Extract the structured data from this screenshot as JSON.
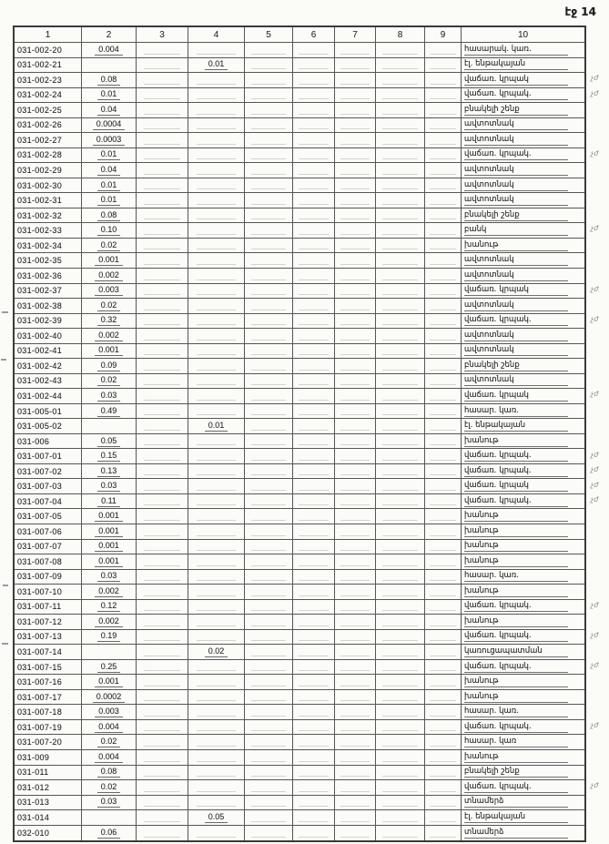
{
  "page": {
    "number_label": "էջ 14"
  },
  "colors": {
    "paper": "#fbfbf8",
    "ink": "#2d2d2d",
    "border": "#565656",
    "note": "#8a8a8a"
  },
  "table": {
    "headers": [
      "1",
      "2",
      "3",
      "4",
      "5",
      "6",
      "7",
      "8",
      "9",
      "10"
    ],
    "rows": [
      {
        "code": "031-002-20",
        "area": "0.004",
        "col4": "",
        "designation": "հասարակ. կառ.",
        "note": ""
      },
      {
        "code": "031-002-21",
        "area": "",
        "col4": "0.01",
        "designation": "էլ. ենթակայան",
        "note": ""
      },
      {
        "code": "031-002-23",
        "area": "0.08",
        "col4": "",
        "designation": "վաճառ. կրպակ",
        "note": "չժ"
      },
      {
        "code": "031-002-24",
        "area": "0.01",
        "col4": "",
        "designation": "վաճառ. կրպակ.",
        "note": "չժ"
      },
      {
        "code": "031-002-25",
        "area": "0.04",
        "col4": "",
        "designation": "բնակելի շենք",
        "note": ""
      },
      {
        "code": "031-002-26",
        "area": "0.0004",
        "col4": "",
        "designation": "ավտոտնակ",
        "note": ""
      },
      {
        "code": "031-002-27",
        "area": "0.0003",
        "col4": "",
        "designation": "ավտոտնակ",
        "note": ""
      },
      {
        "code": "031-002-28",
        "area": "0.01",
        "col4": "",
        "designation": "վաճառ. կրպակ.",
        "note": "չժ"
      },
      {
        "code": "031-002-29",
        "area": "0.04",
        "col4": "",
        "designation": "ավտոտնակ",
        "note": ""
      },
      {
        "code": "031-002-30",
        "area": "0.01",
        "col4": "",
        "designation": "ավտոտնակ",
        "note": ""
      },
      {
        "code": "031-002-31",
        "area": "0.01",
        "col4": "",
        "designation": "ավտոտնակ",
        "note": ""
      },
      {
        "code": "031-002-32",
        "area": "0.08",
        "col4": "",
        "designation": "բնակելի շենք",
        "note": ""
      },
      {
        "code": "031-002-33",
        "area": "0.10",
        "col4": "",
        "designation": "բանկ",
        "note": "չժ"
      },
      {
        "code": "031-002-34",
        "area": "0.02",
        "col4": "",
        "designation": "խանութ",
        "note": ""
      },
      {
        "code": "031-002-35",
        "area": "0.001",
        "col4": "",
        "designation": "ավտոտնակ",
        "note": ""
      },
      {
        "code": "031-002-36",
        "area": "0.002",
        "col4": "",
        "designation": "ավտոտնակ",
        "note": ""
      },
      {
        "code": "031-002-37",
        "area": "0.003",
        "col4": "",
        "designation": "վաճառ. կրպակ",
        "note": "չժ"
      },
      {
        "code": "031-002-38",
        "area": "0.02",
        "col4": "",
        "designation": "ավտոտնակ",
        "note": ""
      },
      {
        "code": "031-002-39",
        "area": "0.32",
        "col4": "",
        "designation": "վաճառ. կրպակ.",
        "note": "չժ"
      },
      {
        "code": "031-002-40",
        "area": "0.002",
        "col4": "",
        "designation": "ավտոտնակ",
        "note": ""
      },
      {
        "code": "031-002-41",
        "area": "0.001",
        "col4": "",
        "designation": "ավտոտնակ",
        "note": ""
      },
      {
        "code": "031-002-42",
        "area": "0.09",
        "col4": "",
        "designation": "բնակելի շենք",
        "note": ""
      },
      {
        "code": "031-002-43",
        "area": "0.02",
        "col4": "",
        "designation": "ավտոտնակ",
        "note": ""
      },
      {
        "code": "031-002-44",
        "area": "0.03",
        "col4": "",
        "designation": "վաճառ. կրպակ",
        "note": "չժ"
      },
      {
        "code": "031-005-01",
        "area": "0.49",
        "col4": "",
        "designation": "հասար. կառ.",
        "note": ""
      },
      {
        "code": "031-005-02",
        "area": "",
        "col4": "0.01",
        "designation": "էլ. ենթակայան",
        "note": ""
      },
      {
        "code": "031-006",
        "area": "0.05",
        "col4": "",
        "designation": "խանութ",
        "note": ""
      },
      {
        "code": "031-007-01",
        "area": "0.15",
        "col4": "",
        "designation": "վաճառ. կրպակ.",
        "note": "չժ"
      },
      {
        "code": "031-007-02",
        "area": "0.13",
        "col4": "",
        "designation": "վաճառ. կրպակ.",
        "note": "չժ"
      },
      {
        "code": "031-007-03",
        "area": "0.03",
        "col4": "",
        "designation": "վաճառ. կրպակ",
        "note": "չժ"
      },
      {
        "code": "031-007-04",
        "area": "0.11",
        "col4": "",
        "designation": "վաճառ. կրպակ.",
        "note": "չժ"
      },
      {
        "code": "031-007-05",
        "area": "0.001",
        "col4": "",
        "designation": "խանութ",
        "note": ""
      },
      {
        "code": "031-007-06",
        "area": "0.001",
        "col4": "",
        "designation": "խանութ",
        "note": ""
      },
      {
        "code": "031-007-07",
        "area": "0.001",
        "col4": "",
        "designation": "խանութ",
        "note": ""
      },
      {
        "code": "031-007-08",
        "area": "0.001",
        "col4": "",
        "designation": "խանութ",
        "note": ""
      },
      {
        "code": "031-007-09",
        "area": "0.03",
        "col4": "",
        "designation": "հասար. կառ.",
        "note": ""
      },
      {
        "code": "031-007-10",
        "area": "0.002",
        "col4": "",
        "designation": "խանութ",
        "note": ""
      },
      {
        "code": "031-007-11",
        "area": "0.12",
        "col4": "",
        "designation": "վաճառ. կրպակ.",
        "note": "չժ"
      },
      {
        "code": "031-007-12",
        "area": "0.002",
        "col4": "",
        "designation": "խանութ",
        "note": ""
      },
      {
        "code": "031-007-13",
        "area": "0.19",
        "col4": "",
        "designation": "վաճառ. կրպակ.",
        "note": "չժ"
      },
      {
        "code": "031-007-14",
        "area": "",
        "col4": "0.02",
        "designation": "կառուցապատման",
        "note": ""
      },
      {
        "code": "031-007-15",
        "area": "0.25",
        "col4": "",
        "designation": "վաճառ. կրպակ.",
        "note": "չժ"
      },
      {
        "code": "031-007-16",
        "area": "0.001",
        "col4": "",
        "designation": "խանութ",
        "note": ""
      },
      {
        "code": "031-007-17",
        "area": "0.0002",
        "col4": "",
        "designation": "խանութ",
        "note": ""
      },
      {
        "code": "031-007-18",
        "area": "0.003",
        "col4": "",
        "designation": "հասար. կառ.",
        "note": ""
      },
      {
        "code": "031-007-19",
        "area": "0.004",
        "col4": "",
        "designation": "վաճառ. կրպակ.",
        "note": "չժ"
      },
      {
        "code": "031-007-20",
        "area": "0.02",
        "col4": "",
        "designation": "հասար. կառ",
        "note": ""
      },
      {
        "code": "031-009",
        "area": "0.004",
        "col4": "",
        "designation": "խանութ",
        "note": ""
      },
      {
        "code": "031-011",
        "area": "0.08",
        "col4": "",
        "designation": "բնակելի շենք",
        "note": ""
      },
      {
        "code": "031-012",
        "area": "0.02",
        "col4": "",
        "designation": "վաճառ. կրպակ.",
        "note": "չժ"
      },
      {
        "code": "031-013",
        "area": "0.03",
        "col4": "",
        "designation": "տնամերձ",
        "note": ""
      },
      {
        "code": "031-014",
        "area": "",
        "col4": "0.05",
        "designation": "էլ. ենթակայան",
        "note": ""
      },
      {
        "code": "032-010",
        "area": "0.06",
        "col4": "",
        "designation": "տնամերձ",
        "note": ""
      }
    ]
  }
}
